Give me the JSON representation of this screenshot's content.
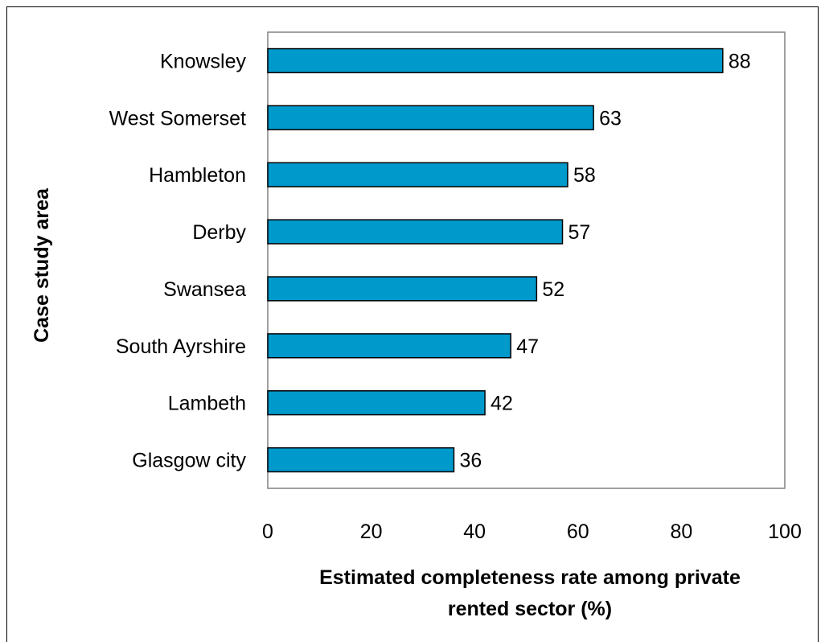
{
  "chart_data": {
    "type": "bar",
    "orientation": "horizontal",
    "categories": [
      "Knowsley",
      "West Somerset",
      "Hambleton",
      "Derby",
      "Swansea",
      "South Ayrshire",
      "Lambeth",
      "Glasgow city"
    ],
    "values": [
      88,
      63,
      58,
      57,
      52,
      47,
      42,
      36
    ],
    "title": "",
    "xlabel_lines": [
      "Estimated completeness rate among private",
      "rented sector (%)"
    ],
    "ylabel": "Case study area",
    "xlim": [
      0,
      100
    ],
    "xticks": [
      "0",
      "20",
      "40",
      "60",
      "80",
      "100"
    ],
    "grid": false,
    "legend": "none",
    "bar_color": "#0099cc",
    "bar_edge_color": "#000000"
  }
}
